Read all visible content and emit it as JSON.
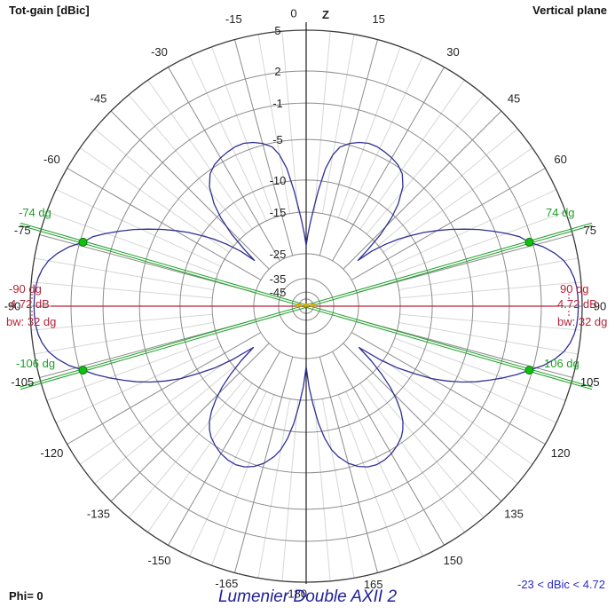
{
  "header": {
    "tot_gain": "Tot-gain [dBic]",
    "plane": "Vertical plane"
  },
  "footer": {
    "phi": "Phi= 0",
    "title": "Lumenier Double AXII 2",
    "range": "-23 < dBic < 4.72"
  },
  "marker_labels": {
    "left_angle": "-90 dg",
    "left_gain": "4.72 dB",
    "left_bw": "bw: 32 dg",
    "right_angle": "90 dg",
    "right_gain": "4.72 dB",
    "right_bw": "bw: 32 dg",
    "bw_top_left": "-74 dg",
    "bw_top_right": "74 dg",
    "bw_bottom_left": "-106 dg",
    "bw_bottom_right": "106 dg"
  },
  "chart_data": {
    "type": "polar-radiation-pattern",
    "title": "Lumenier Double AXII 2",
    "quantity": "Tot-gain [dBic]",
    "plane": "Vertical plane",
    "phi_cut": 0,
    "range_label": "-23 < dBic < 4.72",
    "gain_min_db": -23,
    "gain_max_db": 4.72,
    "axis_label": "Z",
    "angle_labels_deg": [
      0,
      15,
      30,
      45,
      60,
      75,
      90,
      105,
      120,
      135,
      150,
      165,
      -180,
      -165,
      -150,
      -135,
      -120,
      -105,
      -90,
      -75,
      -60,
      -45,
      -30,
      -15
    ],
    "minor_spoke_step_deg": 5,
    "major_spoke_step_deg": 15,
    "radial_rings_db": [
      5,
      2,
      -1,
      -5,
      -10,
      -15,
      -25,
      -35,
      -45
    ],
    "radial_ring_fractions": [
      1.0,
      0.852,
      0.736,
      0.604,
      0.457,
      0.341,
      0.19,
      0.1,
      0.051
    ],
    "inner_ring_fraction": 0.026,
    "marker_angle_deg": 90,
    "marker_gain_db": 4.72,
    "beamwidth_deg": 32,
    "bw_point_angles_deg": [
      74,
      106,
      -74,
      -106
    ],
    "bw_point_gain_db": 1.72,
    "symmetric_about_vertical_axis": true,
    "pattern_db": [
      [
        0,
        -23
      ],
      [
        1.5,
        -20.2
      ],
      [
        3,
        -17.2
      ],
      [
        4.5,
        -14.3
      ],
      [
        6,
        -11.6
      ],
      [
        8,
        -8.4
      ],
      [
        10,
        -6.6
      ],
      [
        12,
        -5.5
      ],
      [
        15,
        -4.8
      ],
      [
        18,
        -4.4
      ],
      [
        21,
        -4.15
      ],
      [
        24,
        -4.15
      ],
      [
        27,
        -4.3
      ],
      [
        30,
        -4.5
      ],
      [
        33,
        -4.8
      ],
      [
        36,
        -5.4
      ],
      [
        39,
        -6.6
      ],
      [
        42,
        -8.6
      ],
      [
        44,
        -10.5
      ],
      [
        46,
        -13.5
      ],
      [
        47.5,
        -17.5
      ],
      [
        48.5,
        -21
      ],
      [
        50,
        -17
      ],
      [
        52,
        -14
      ],
      [
        54,
        -11.9
      ],
      [
        56,
        -10
      ],
      [
        58,
        -8.4
      ],
      [
        60,
        -6.9
      ],
      [
        62,
        -5.4
      ],
      [
        64,
        -4
      ],
      [
        66,
        -2.6
      ],
      [
        68,
        -1.3
      ],
      [
        70,
        -0.1
      ],
      [
        72,
        1
      ],
      [
        74,
        1.72
      ],
      [
        76,
        2.7
      ],
      [
        78,
        3.4
      ],
      [
        80,
        3.95
      ],
      [
        82,
        4.3
      ],
      [
        84,
        4.52
      ],
      [
        86,
        4.65
      ],
      [
        88,
        4.7
      ],
      [
        90,
        4.72
      ],
      [
        92,
        4.7
      ],
      [
        94,
        4.65
      ],
      [
        96,
        4.52
      ],
      [
        98,
        4.3
      ],
      [
        100,
        3.95
      ],
      [
        102,
        3.4
      ],
      [
        104,
        2.7
      ],
      [
        106,
        1.72
      ],
      [
        108,
        0.7
      ],
      [
        110,
        -0.4
      ],
      [
        112,
        -1.6
      ],
      [
        114,
        -2.9
      ],
      [
        116,
        -4.3
      ],
      [
        118,
        -5.9
      ],
      [
        120,
        -7.7
      ],
      [
        122,
        -9.9
      ],
      [
        124,
        -12.4
      ],
      [
        126,
        -15.8
      ],
      [
        128,
        -21.5
      ],
      [
        130,
        -17.2
      ],
      [
        132,
        -13.8
      ],
      [
        134,
        -11.4
      ],
      [
        136,
        -9.5
      ],
      [
        138,
        -8.1
      ],
      [
        140,
        -7
      ],
      [
        142,
        -6.2
      ],
      [
        144,
        -5.6
      ],
      [
        147,
        -5
      ],
      [
        150,
        -4.6
      ],
      [
        153,
        -4.35
      ],
      [
        156,
        -4.25
      ],
      [
        159,
        -4.4
      ],
      [
        162,
        -4.8
      ],
      [
        165,
        -5.5
      ],
      [
        168,
        -6.6
      ],
      [
        170,
        -7.6
      ],
      [
        172,
        -9.1
      ],
      [
        174,
        -11.3
      ],
      [
        176,
        -14.3
      ],
      [
        178,
        -18.2
      ],
      [
        180,
        -23
      ]
    ],
    "colors": {
      "pattern": "#2f2f96",
      "marker_line": "#b52438",
      "bw_line": "#1e9e28",
      "bw_dot": "#0fc00f",
      "bw_dot_edge": "#0a7a0a",
      "grid_minor": "#d6d6d6",
      "grid_major": "#8c8c8c",
      "ring": "#8c8c8c",
      "ring_outer": "#3c3c3c",
      "axis": "#1a1a1a",
      "center_marker": "#d2ae14"
    }
  }
}
